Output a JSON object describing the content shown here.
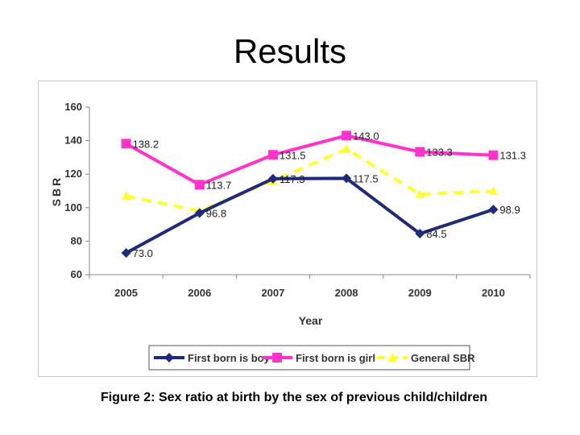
{
  "slide": {
    "title": "Results",
    "caption": "Figure 2: Sex ratio at birth by the sex of previous child/children"
  },
  "chart_data": {
    "type": "line",
    "title": "",
    "xlabel": "Year",
    "ylabel": "SBR",
    "x": [
      "2005",
      "2006",
      "2007",
      "2008",
      "2009",
      "2010"
    ],
    "ylim": [
      60,
      160
    ],
    "yticks": [
      60,
      80,
      100,
      120,
      140,
      160
    ],
    "grid": false,
    "legend_position": "bottom",
    "series": [
      {
        "name": "First born is boy",
        "values": [
          73.0,
          96.8,
          117.3,
          117.5,
          84.5,
          98.9
        ],
        "labels": [
          "73.0",
          "96.8",
          "117.3",
          "117.5",
          "84.5",
          "98.9"
        ],
        "color": "#1f2a7a",
        "marker": "diamond",
        "dashed": false
      },
      {
        "name": "First born is girl",
        "values": [
          138.2,
          113.7,
          131.5,
          143.0,
          133.3,
          131.3
        ],
        "labels": [
          "138.2",
          "113.7",
          "131.5",
          "143.0",
          "133.3",
          "131.3"
        ],
        "color": "#ff33cc",
        "marker": "square",
        "dashed": false
      },
      {
        "name": "General SBR",
        "values": [
          107,
          98,
          116,
          135,
          108,
          110
        ],
        "labels": [],
        "color": "#ffff33",
        "marker": "triangle",
        "dashed": true
      }
    ]
  }
}
